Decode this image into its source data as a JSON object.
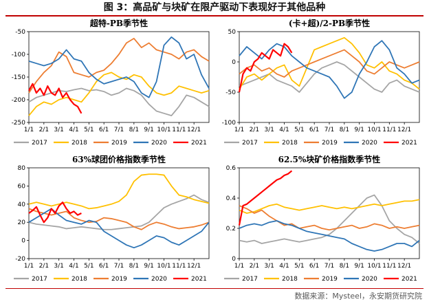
{
  "figure": {
    "title": "图 3：高品矿与块矿在限产驱动下表现好于其他品种",
    "source": "数据来源：Mysteel，永安期货研究院"
  },
  "colors": {
    "2017": "#a5a5a5",
    "2018": "#ffc000",
    "2019": "#ed7d31",
    "2020": "#2e75b6",
    "2021": "#ff0000",
    "rule": "#c00000"
  },
  "chart_data": [
    {
      "type": "line",
      "title": "超特-PB季节性",
      "x_ticks": [
        "1/1",
        "2/1",
        "3/1",
        "4/1",
        "5/1",
        "6/1",
        "7/1",
        "8/1",
        "9/1",
        "10/1",
        "11/1",
        "12/1"
      ],
      "ylim": [
        -250,
        -50
      ],
      "y_ticks": [
        -50,
        -100,
        -150,
        -200,
        -250
      ],
      "legend": [
        "2017",
        "2018",
        "2019",
        "2020",
        "2021"
      ],
      "series": [
        {
          "name": "2017",
          "x": [
            0,
            0.5,
            1,
            1.5,
            2,
            2.5,
            3,
            3.5,
            4,
            4.5,
            5,
            5.5,
            6,
            6.5,
            7,
            7.5,
            8,
            8.5,
            9,
            9.5,
            10,
            10.5,
            11,
            11.5,
            12
          ],
          "values": [
            -205,
            -195,
            -190,
            -185,
            -180,
            -182,
            -178,
            -175,
            -180,
            -178,
            -182,
            -190,
            -185,
            -175,
            -180,
            -190,
            -210,
            -225,
            -230,
            -235,
            -215,
            -190,
            -195,
            -205,
            -215
          ]
        },
        {
          "name": "2018",
          "x": [
            0,
            0.5,
            1,
            1.5,
            2,
            2.5,
            3,
            3.5,
            4,
            4.5,
            5,
            5.5,
            6,
            6.5,
            7,
            7.5,
            8,
            8.5,
            9,
            9.5,
            10,
            10.5,
            11,
            11.5,
            12
          ],
          "values": [
            -235,
            -215,
            -205,
            -210,
            -200,
            -195,
            -200,
            -205,
            -185,
            -160,
            -145,
            -140,
            -150,
            -155,
            -145,
            -150,
            -170,
            -185,
            -190,
            -185,
            -170,
            -175,
            -180,
            -185,
            -180
          ]
        },
        {
          "name": "2019",
          "x": [
            0,
            0.5,
            1,
            1.5,
            2,
            2.5,
            3,
            3.5,
            4,
            4.5,
            5,
            5.5,
            6,
            6.5,
            7,
            7.5,
            8,
            8.5,
            9,
            9.5,
            10,
            10.5,
            11,
            11.5,
            12
          ],
          "values": [
            -185,
            -160,
            -140,
            -125,
            -95,
            -105,
            -140,
            -145,
            -150,
            -140,
            -135,
            -120,
            -100,
            -75,
            -65,
            -85,
            -75,
            -90,
            -95,
            -100,
            -110,
            -95,
            -90,
            -105,
            -115
          ]
        },
        {
          "name": "2020",
          "x": [
            0,
            0.5,
            1,
            1.5,
            2,
            2.5,
            3,
            3.5,
            4,
            4.5,
            5,
            5.5,
            6,
            6.5,
            7,
            7.5,
            8,
            8.5,
            9,
            9.5,
            10,
            10.5,
            11,
            11.5,
            12
          ],
          "values": [
            -115,
            -120,
            -125,
            -120,
            -110,
            -90,
            -110,
            -115,
            -140,
            -155,
            -165,
            -160,
            -155,
            -150,
            -160,
            -185,
            -195,
            -160,
            -80,
            -62,
            -75,
            -110,
            -100,
            -145,
            -175
          ]
        },
        {
          "name": "2021",
          "x": [
            0,
            0.25,
            0.5,
            0.75,
            1,
            1.25,
            1.5,
            1.75,
            2,
            2.25,
            2.5,
            2.75,
            3,
            3.25,
            3.5
          ],
          "values": [
            -180,
            -165,
            -185,
            -175,
            -190,
            -170,
            -185,
            -190,
            -175,
            -195,
            -185,
            -200,
            -210,
            -215,
            -230
          ]
        }
      ]
    },
    {
      "type": "line",
      "title": "(卡+超)/2-PB季节性",
      "x_ticks": [
        "1/1",
        "2/1",
        "3/1",
        "4/1",
        "5/1",
        "6/1",
        "7/1",
        "8/1",
        "9/1",
        "10/1",
        "11/1",
        "12/1"
      ],
      "ylim": [
        -100,
        50
      ],
      "y_ticks": [
        50,
        0,
        -50,
        -100
      ],
      "legend": [
        "2017",
        "2018",
        "2019",
        "2020",
        "2021"
      ],
      "series": [
        {
          "name": "2017",
          "x": [
            0,
            0.5,
            1,
            1.5,
            2,
            2.5,
            3,
            3.5,
            4,
            4.5,
            5,
            5.5,
            6,
            6.5,
            7,
            7.5,
            8,
            8.5,
            9,
            9.5,
            10,
            10.5,
            11,
            11.5,
            12
          ],
          "values": [
            -40,
            -35,
            -30,
            -25,
            -20,
            -30,
            -35,
            -40,
            -50,
            -35,
            -20,
            -10,
            -5,
            0,
            -5,
            -15,
            -25,
            -35,
            -45,
            -50,
            -35,
            -30,
            -40,
            -45,
            -50
          ]
        },
        {
          "name": "2018",
          "x": [
            0,
            0.5,
            1,
            1.5,
            2,
            2.5,
            3,
            3.5,
            4,
            4.5,
            5,
            5.5,
            6,
            6.5,
            7,
            7.5,
            8,
            8.5,
            9,
            9.5,
            10,
            10.5,
            11,
            11.5,
            12
          ],
          "values": [
            -45,
            -25,
            -20,
            -30,
            -20,
            -10,
            -5,
            -30,
            -40,
            -10,
            20,
            25,
            30,
            35,
            40,
            30,
            15,
            -5,
            -10,
            0,
            -15,
            -20,
            -30,
            -35,
            -45
          ]
        },
        {
          "name": "2019",
          "x": [
            0,
            0.5,
            1,
            1.5,
            2,
            2.5,
            3,
            3.5,
            4,
            4.5,
            5,
            5.5,
            6,
            6.5,
            7,
            7.5,
            8,
            8.5,
            9,
            9.5,
            10,
            10.5,
            11,
            11.5,
            12
          ],
          "values": [
            -20,
            -10,
            -5,
            -15,
            -10,
            -20,
            -25,
            -15,
            -10,
            -5,
            0,
            5,
            10,
            15,
            20,
            10,
            0,
            -15,
            -20,
            -10,
            0,
            -5,
            -10,
            -5,
            0
          ]
        },
        {
          "name": "2020",
          "x": [
            0,
            0.5,
            1,
            1.5,
            2,
            2.5,
            3,
            3.5,
            4,
            4.5,
            5,
            5.5,
            6,
            6.5,
            7,
            7.5,
            8,
            8.5,
            9,
            9.5,
            10,
            10.5,
            11,
            11.5,
            12
          ],
          "values": [
            10,
            25,
            15,
            5,
            20,
            30,
            25,
            10,
            0,
            -10,
            -15,
            -20,
            -25,
            -40,
            -60,
            -50,
            -20,
            0,
            25,
            35,
            20,
            -10,
            -20,
            -35,
            -30
          ]
        },
        {
          "name": "2021",
          "x": [
            0,
            0.25,
            0.5,
            0.75,
            1,
            1.25,
            1.5,
            1.75,
            2,
            2.25,
            2.5,
            2.75,
            3,
            3.25,
            3.5
          ],
          "values": [
            -50,
            -20,
            -10,
            -15,
            0,
            5,
            15,
            10,
            5,
            20,
            15,
            10,
            30,
            25,
            15
          ]
        }
      ]
    },
    {
      "type": "line",
      "title": "63%球团价格指数季节性",
      "x_ticks": [
        "1/1",
        "2/1",
        "3/1",
        "4/1",
        "5/1",
        "6/1",
        "7/1",
        "8/1",
        "9/1",
        "10/1",
        "11/1",
        "12/1"
      ],
      "ylim": [
        -20,
        80
      ],
      "y_ticks": [
        80,
        60,
        40,
        20,
        0,
        -20
      ],
      "legend": [
        "2017",
        "2018",
        "2019",
        "2020",
        "2021"
      ],
      "series": [
        {
          "name": "2017",
          "x": [
            0,
            0.5,
            1,
            1.5,
            2,
            2.5,
            3,
            3.5,
            4,
            4.5,
            5,
            5.5,
            6,
            6.5,
            7,
            7.5,
            8,
            8.5,
            9,
            9.5,
            10,
            10.5,
            11,
            11.5,
            12
          ],
          "values": [
            20,
            18,
            17,
            16,
            15,
            13,
            14,
            15,
            14,
            13,
            12,
            12,
            13,
            14,
            15,
            16,
            20,
            28,
            36,
            40,
            43,
            46,
            50,
            45,
            42
          ]
        },
        {
          "name": "2018",
          "x": [
            0,
            0.5,
            1,
            1.5,
            2,
            2.5,
            3,
            3.5,
            4,
            4.5,
            5,
            5.5,
            6,
            6.5,
            7,
            7.5,
            8,
            8.5,
            9,
            9.5,
            10,
            10.5,
            11,
            11.5,
            12
          ],
          "values": [
            40,
            42,
            40,
            38,
            40,
            42,
            40,
            38,
            35,
            36,
            38,
            40,
            43,
            50,
            65,
            72,
            73,
            73,
            72,
            60,
            50,
            48,
            45,
            43,
            41
          ]
        },
        {
          "name": "2019",
          "x": [
            0,
            0.5,
            1,
            1.5,
            2,
            2.5,
            3,
            3.5,
            4,
            4.5,
            5,
            5.5,
            6,
            6.5,
            7,
            7.5,
            8,
            8.5,
            9,
            9.5,
            10,
            10.5,
            11,
            11.5,
            12
          ],
          "values": [
            35,
            32,
            30,
            28,
            30,
            32,
            25,
            22,
            20,
            21,
            25,
            24,
            22,
            20,
            15,
            12,
            17,
            20,
            18,
            15,
            13,
            14,
            15,
            17,
            20
          ]
        },
        {
          "name": "2020",
          "x": [
            0,
            0.5,
            1,
            1.5,
            2,
            2.5,
            3,
            3.5,
            4,
            4.5,
            5,
            5.5,
            6,
            6.5,
            7,
            7.5,
            8,
            8.5,
            9,
            9.5,
            10,
            10.5,
            11,
            11.5,
            12
          ],
          "values": [
            20,
            25,
            30,
            35,
            28,
            22,
            20,
            18,
            22,
            20,
            10,
            5,
            0,
            -5,
            -8,
            -5,
            0,
            5,
            3,
            -2,
            -5,
            0,
            5,
            10,
            20
          ]
        },
        {
          "name": "2021",
          "x": [
            0,
            0.25,
            0.5,
            0.75,
            1,
            1.25,
            1.5,
            1.75,
            2,
            2.25,
            2.5,
            2.75,
            3,
            3.25,
            3.5
          ],
          "values": [
            30,
            33,
            37,
            28,
            20,
            25,
            35,
            30,
            38,
            42,
            35,
            30,
            32,
            28,
            30
          ]
        }
      ]
    },
    {
      "type": "line",
      "title": "62.5%块矿价格指数季节性",
      "x_ticks": [
        "1/1",
        "2/1",
        "3/1",
        "4/1",
        "5/1",
        "6/1",
        "7/1",
        "8/1",
        "9/1",
        "10/1",
        "11/1",
        "12/1"
      ],
      "ylim": [
        0,
        0.6
      ],
      "y_ticks": [
        0.6,
        0.4,
        0.2,
        0
      ],
      "legend": [
        "2017",
        "2018",
        "2019",
        "2020",
        "2021"
      ],
      "series": [
        {
          "name": "2017",
          "x": [
            0,
            0.5,
            1,
            1.5,
            2,
            2.5,
            3,
            3.5,
            4,
            4.5,
            5,
            5.5,
            6,
            6.5,
            7,
            7.5,
            8,
            8.5,
            9,
            9.5,
            10,
            10.5,
            11,
            11.5,
            12
          ],
          "values": [
            0.12,
            0.11,
            0.12,
            0.1,
            0.11,
            0.12,
            0.13,
            0.12,
            0.11,
            0.12,
            0.13,
            0.14,
            0.16,
            0.2,
            0.25,
            0.3,
            0.35,
            0.4,
            0.42,
            0.35,
            0.25,
            0.2,
            0.16,
            0.14,
            0.1
          ]
        },
        {
          "name": "2018",
          "x": [
            0,
            0.5,
            1,
            1.5,
            2,
            2.5,
            3,
            3.5,
            4,
            4.5,
            5,
            5.5,
            6,
            6.5,
            7,
            7.5,
            8,
            8.5,
            9,
            9.5,
            10,
            10.5,
            11,
            11.5,
            12
          ],
          "values": [
            0.32,
            0.3,
            0.31,
            0.33,
            0.35,
            0.36,
            0.34,
            0.33,
            0.32,
            0.33,
            0.34,
            0.35,
            0.34,
            0.33,
            0.34,
            0.33,
            0.34,
            0.35,
            0.36,
            0.35,
            0.36,
            0.37,
            0.38,
            0.38,
            0.39
          ]
        },
        {
          "name": "2019",
          "x": [
            0,
            0.5,
            1,
            1.5,
            2,
            2.5,
            3,
            3.5,
            4,
            4.5,
            5,
            5.5,
            6,
            6.5,
            7,
            7.5,
            8,
            8.5,
            9,
            9.5,
            10,
            10.5,
            11,
            11.5,
            12
          ],
          "values": [
            0.35,
            0.33,
            0.3,
            0.32,
            0.28,
            0.25,
            0.22,
            0.23,
            0.2,
            0.21,
            0.22,
            0.2,
            0.19,
            0.2,
            0.21,
            0.22,
            0.2,
            0.21,
            0.23,
            0.22,
            0.2,
            0.21,
            0.2,
            0.21,
            0.22
          ]
        },
        {
          "name": "2020",
          "x": [
            0,
            0.5,
            1,
            1.5,
            2,
            2.5,
            3,
            3.5,
            4,
            4.5,
            5,
            5.5,
            6,
            6.5,
            7,
            7.5,
            8,
            8.5,
            9,
            9.5,
            10,
            10.5,
            11,
            11.5,
            12
          ],
          "values": [
            0.2,
            0.22,
            0.23,
            0.22,
            0.24,
            0.25,
            0.23,
            0.22,
            0.2,
            0.18,
            0.17,
            0.16,
            0.15,
            0.14,
            0.13,
            0.1,
            0.08,
            0.06,
            0.05,
            0.06,
            0.08,
            0.1,
            0.1,
            0.08,
            0.12
          ]
        },
        {
          "name": "2021",
          "x": [
            0,
            0.25,
            0.5,
            0.75,
            1,
            1.25,
            1.5,
            1.75,
            2,
            2.25,
            2.5,
            2.75,
            3,
            3.25,
            3.5
          ],
          "values": [
            0.22,
            0.35,
            0.36,
            0.38,
            0.4,
            0.42,
            0.44,
            0.46,
            0.48,
            0.5,
            0.52,
            0.53,
            0.55,
            0.56,
            0.58
          ]
        }
      ]
    }
  ]
}
